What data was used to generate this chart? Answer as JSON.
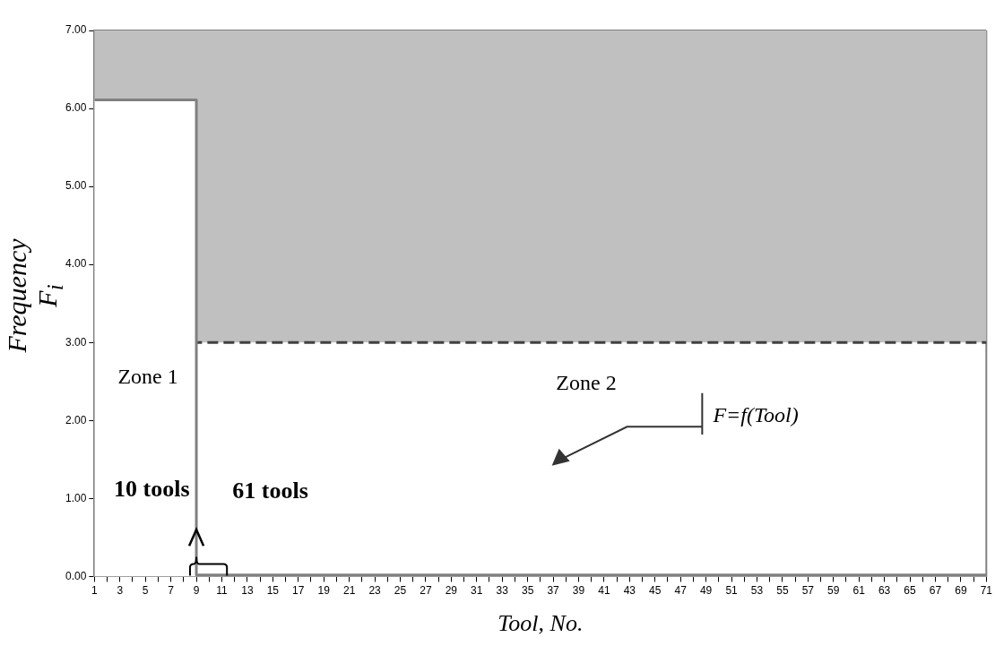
{
  "chart_data": {
    "type": "area",
    "xlabel": "Tool, No.",
    "ylabel": "Frequency F$_{i}$",
    "series": [
      {
        "x": [
          1,
          9,
          9,
          71
        ],
        "values": [
          6.11,
          6.11,
          0.02,
          0.02
        ],
        "color": "#808080"
      }
    ],
    "xlim": [
      1,
      71
    ],
    "xticks": [
      1,
      {
        "value": 2,
        "label": null
      },
      3,
      {
        "value": 4,
        "label": null
      },
      5,
      {
        "value": 6,
        "label": null
      },
      7,
      {
        "value": 8,
        "label": null
      },
      9,
      {
        "value": 10,
        "label": null
      },
      11,
      {
        "value": 12,
        "label": null
      },
      13,
      {
        "value": 14,
        "label": null
      },
      15,
      {
        "value": 16,
        "label": null
      },
      17,
      {
        "value": 18,
        "label": null
      },
      19,
      {
        "value": 20,
        "label": null
      },
      21,
      {
        "value": 22,
        "label": null
      },
      23,
      {
        "value": 24,
        "label": null
      },
      25,
      {
        "value": 26,
        "label": null
      },
      27,
      {
        "value": 28,
        "label": null
      },
      29,
      {
        "value": 30,
        "label": null
      },
      31,
      {
        "value": 32,
        "label": null
      },
      33,
      {
        "value": 34,
        "label": null
      },
      35,
      {
        "value": 36,
        "label": null
      },
      37,
      {
        "value": 38,
        "label": null
      },
      39,
      {
        "value": 40,
        "label": null
      },
      41,
      {
        "value": 42,
        "label": null
      },
      43,
      {
        "value": 44,
        "label": null
      },
      45,
      {
        "value": 46,
        "label": null
      },
      47,
      {
        "value": 48,
        "label": null
      },
      49,
      {
        "value": 50,
        "label": null
      },
      51,
      {
        "value": 52,
        "label": null
      },
      53,
      {
        "value": 54,
        "label": null
      },
      55,
      {
        "value": 56,
        "label": null
      },
      57,
      {
        "value": 58,
        "label": null
      },
      59,
      {
        "value": 60,
        "label": null
      },
      61,
      {
        "value": 62,
        "label": null
      },
      63,
      {
        "value": 64,
        "label": null
      },
      65,
      {
        "value": 66,
        "label": null
      },
      67,
      {
        "value": 68,
        "label": null
      },
      69,
      {
        "value": 70,
        "label": null
      },
      71
    ],
    "ylim": [
      0,
      7
    ],
    "yticks": [
      {
        "value": 0,
        "label": "0.00"
      },
      {
        "value": 1,
        "label": "1.00"
      },
      {
        "value": 2,
        "label": "2.00"
      },
      {
        "value": 3,
        "label": "3.00"
      },
      {
        "value": 4,
        "label": "4.00"
      },
      {
        "value": 5,
        "label": "5.00"
      },
      {
        "value": 6,
        "label": "6.00"
      },
      {
        "value": 7,
        "label": "7.00"
      }
    ],
    "bands": [
      {
        "axis": "y",
        "from": 3,
        "to": 7,
        "color": "#c0c0c0"
      }
    ],
    "ref_lines": [
      {
        "axis": "y",
        "value": 3,
        "color": "#404040",
        "line_style": "dashed"
      }
    ],
    "annotations": [
      "Zone 1",
      "Zone 2",
      "10 tools",
      "61 tools",
      "F=f(Tool)"
    ],
    "grid": false,
    "legend": false,
    "marker": "none",
    "line_style": "solid"
  }
}
